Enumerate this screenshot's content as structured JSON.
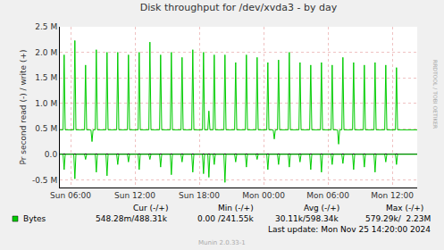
{
  "chart_data": {
    "type": "line",
    "title": "Disk throughput for /dev/xvda3 - by day",
    "y_label": "Pr second read (-) / write (+)",
    "x": [
      5.0,
      5.3,
      5.4,
      5.5,
      6.3,
      6.4,
      6.5,
      7.3,
      7.4,
      7.5,
      7.9,
      8.0,
      8.1,
      8.3,
      8.4,
      8.5,
      9.3,
      9.4,
      9.5,
      10.3,
      10.4,
      10.5,
      11.3,
      11.4,
      11.5,
      12.3,
      12.4,
      12.5,
      13.3,
      13.4,
      13.5,
      14.3,
      14.4,
      14.5,
      15.3,
      15.4,
      15.5,
      16.3,
      16.4,
      16.5,
      17.3,
      17.4,
      17.5,
      18.3,
      18.4,
      18.5,
      18.8,
      18.9,
      19.0,
      19.3,
      19.4,
      19.5,
      20.3,
      20.4,
      20.5,
      21.3,
      21.4,
      21.5,
      22.3,
      22.4,
      22.5,
      23.3,
      23.4,
      23.5,
      24.3,
      24.4,
      24.5,
      24.9,
      25.0,
      25.1,
      25.3,
      25.4,
      25.5,
      26.3,
      26.4,
      26.5,
      27.3,
      27.4,
      27.5,
      28.3,
      28.4,
      28.5,
      29.3,
      29.4,
      29.5,
      30.3,
      30.4,
      30.5,
      30.9,
      31.0,
      31.1,
      31.3,
      31.4,
      31.5,
      32.3,
      32.4,
      32.5,
      33.3,
      33.4,
      33.5,
      34.3,
      34.4,
      34.5,
      35.3,
      35.4,
      35.5,
      36.3,
      36.4,
      36.5,
      38.33
    ],
    "series": [
      {
        "name": "Bytes",
        "color": "#00cc00",
        "values": [
          480000,
          480000,
          1950000,
          480000,
          480000,
          2230000,
          480000,
          480000,
          1750000,
          480000,
          480000,
          250000,
          480000,
          480000,
          2050000,
          480000,
          480000,
          2000000,
          480000,
          480000,
          2000000,
          480000,
          480000,
          1950000,
          480000,
          480000,
          2000000,
          480000,
          480000,
          2200000,
          480000,
          480000,
          1950000,
          480000,
          480000,
          2000000,
          480000,
          480000,
          1900000,
          480000,
          480000,
          2050000,
          480000,
          480000,
          2000000,
          480000,
          480000,
          850000,
          480000,
          480000,
          1950000,
          480000,
          480000,
          1950000,
          480000,
          480000,
          1800000,
          480000,
          480000,
          1950000,
          480000,
          480000,
          1900000,
          480000,
          480000,
          1800000,
          480000,
          480000,
          300000,
          480000,
          480000,
          1850000,
          480000,
          480000,
          2000000,
          480000,
          480000,
          1800000,
          480000,
          480000,
          1750000,
          480000,
          480000,
          1800000,
          480000,
          480000,
          1750000,
          480000,
          480000,
          200000,
          480000,
          480000,
          1900000,
          480000,
          480000,
          1800000,
          480000,
          480000,
          1750000,
          480000,
          480000,
          1800000,
          480000,
          480000,
          1750000,
          480000,
          480000,
          1700000,
          480000,
          480000
        ]
      },
      {
        "color": "#00cc00",
        "values": [
          0,
          0,
          -300000,
          0,
          0,
          -480000,
          0,
          0,
          -100000,
          0,
          0,
          0,
          0,
          0,
          -350000,
          0,
          0,
          -420000,
          0,
          0,
          -200000,
          0,
          0,
          -150000,
          0,
          0,
          -300000,
          0,
          0,
          -100000,
          0,
          0,
          -250000,
          0,
          0,
          -400000,
          0,
          0,
          -150000,
          0,
          0,
          -350000,
          0,
          0,
          -380000,
          0,
          0,
          -450000,
          0,
          0,
          -200000,
          0,
          0,
          -550000,
          0,
          0,
          -150000,
          0,
          0,
          -250000,
          0,
          0,
          -100000,
          0,
          0,
          -300000,
          0,
          0,
          0,
          0,
          0,
          -200000,
          0,
          0,
          -250000,
          0,
          0,
          -150000,
          0,
          0,
          -300000,
          0,
          0,
          -350000,
          0,
          0,
          -200000,
          0,
          0,
          0,
          0,
          0,
          -180000,
          0,
          0,
          -300000,
          0,
          0,
          -250000,
          0,
          0,
          -350000,
          0,
          0,
          -150000,
          0,
          0,
          -200000,
          0,
          0
        ]
      }
    ],
    "xlim": [
      5.0,
      38.33
    ],
    "xticks": [
      {
        "value": 6,
        "label": "Sun 06:00"
      },
      {
        "value": 12,
        "label": "Sun 12:00"
      },
      {
        "value": 18,
        "label": "Sun 18:00"
      },
      {
        "value": 24,
        "label": "Mon 00:00"
      },
      {
        "value": 30,
        "label": "Mon 06:00"
      },
      {
        "value": 36,
        "label": "Mon 12:00"
      }
    ],
    "ylim": [
      -650000,
      2500000
    ],
    "yticks": [
      {
        "value": -500000,
        "label": "-0.5 M"
      },
      {
        "value": 0,
        "label": "0.0"
      },
      {
        "value": 500000,
        "label": "0.5 M"
      },
      {
        "value": 1000000,
        "label": "1.0 M"
      },
      {
        "value": 1500000,
        "label": "1.5 M"
      },
      {
        "value": 2000000,
        "label": "2.0 M"
      },
      {
        "value": 2500000,
        "label": "2.5 M"
      }
    ],
    "grid": true,
    "legend_table": {
      "headers": [
        "Cur (-/+)",
        "Min (-/+)",
        "Avg (-/+)",
        "Max (-/+)"
      ],
      "label": "Bytes",
      "cells": [
        "548.28m/488.31k",
        "0.00 /241.55k",
        "30.11k/598.34k",
        "579.29k/  2.23M"
      ]
    },
    "last_update": "Last update: Mon Nov 25 14:20:00 2024",
    "side_text": "RRDTOOL / TOBI OETIKER",
    "footer": "Munin 2.0.33-1"
  }
}
